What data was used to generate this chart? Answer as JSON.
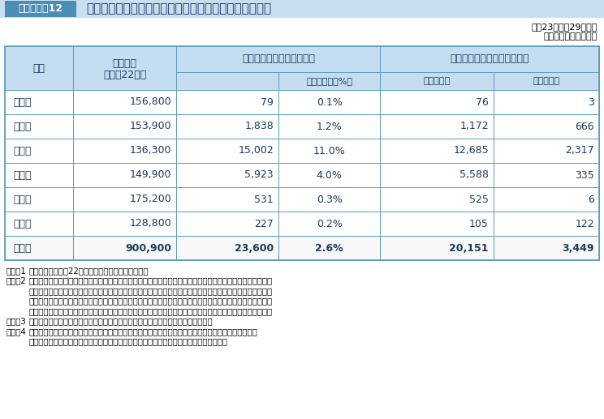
{
  "title_box_label": "表１－１－12",
  "title_text": "津波により流失や冠水等の被害を受けた農地の推定面積",
  "date_text": "平成23年３月29日現在",
  "unit_text": "（単位：ヘクタール）",
  "rows": [
    [
      "青森県",
      "156,800",
      "79",
      "0.1%",
      "76",
      "3"
    ],
    [
      "岩手県",
      "153,900",
      "1,838",
      "1.2%",
      "1,172",
      "666"
    ],
    [
      "宮城県",
      "136,300",
      "15,002",
      "11.0%",
      "12,685",
      "2,317"
    ],
    [
      "福島県",
      "149,900",
      "5,923",
      "4.0%",
      "5,588",
      "335"
    ],
    [
      "茨城県",
      "175,200",
      "531",
      "0.3%",
      "525",
      "6"
    ],
    [
      "千葉県",
      "128,800",
      "227",
      "0.2%",
      "105",
      "122"
    ],
    [
      "合　計",
      "900,900",
      "23,600",
      "2.6%",
      "20,151",
      "3,449"
    ]
  ],
  "notes": [
    [
      "（注）1",
      "耕地面積は，平成22年耕地面積（田畑計）である。"
    ],
    [
      "　　　2",
      "流失・冠水等被害推定面積は，地震発生前の農地が撮影されている人工衛星画像を基に，東北地方太平洋沖地"
    ],
    [
      "",
      "震の浸水範囲概況図（国土地理院）等の資料を活用しながら目視判断により，農地が流失又は冠水したと思わ"
    ],
    [
      "",
      "れる農地を推定して求積した。なお，今回被害面積を推定した浸水範囲以外の地域においても地割れ，液状化"
    ],
    [
      "",
      "等の被害が発生しているが，これらの被害面積については現在調査中のため今回の数値には含まれていない。"
    ],
    [
      "　　　3",
      "被害面積求積は農地集団毎に求積しており一部水路や細い農道等も含まれている。"
    ],
    [
      "　　　4",
      "推定面積の田畑別内訳の試算については，過去の調査結果による当該地域の田畑比率等から推計した。"
    ],
    [
      "",
      "　　　　　　　　　　　　　　　　　　　　　　　　　　　　　　　（農林水産省資料）"
    ]
  ],
  "header_bg": "#c5ddf0",
  "border_color": "#5b9dbf",
  "title_bar_bg": "#4a8db5",
  "title_bar_text_color": "#ffffff",
  "title_bg_light": "#ddeef8",
  "body_text_color": "#1a3a5c",
  "note_text_color": "#000000"
}
